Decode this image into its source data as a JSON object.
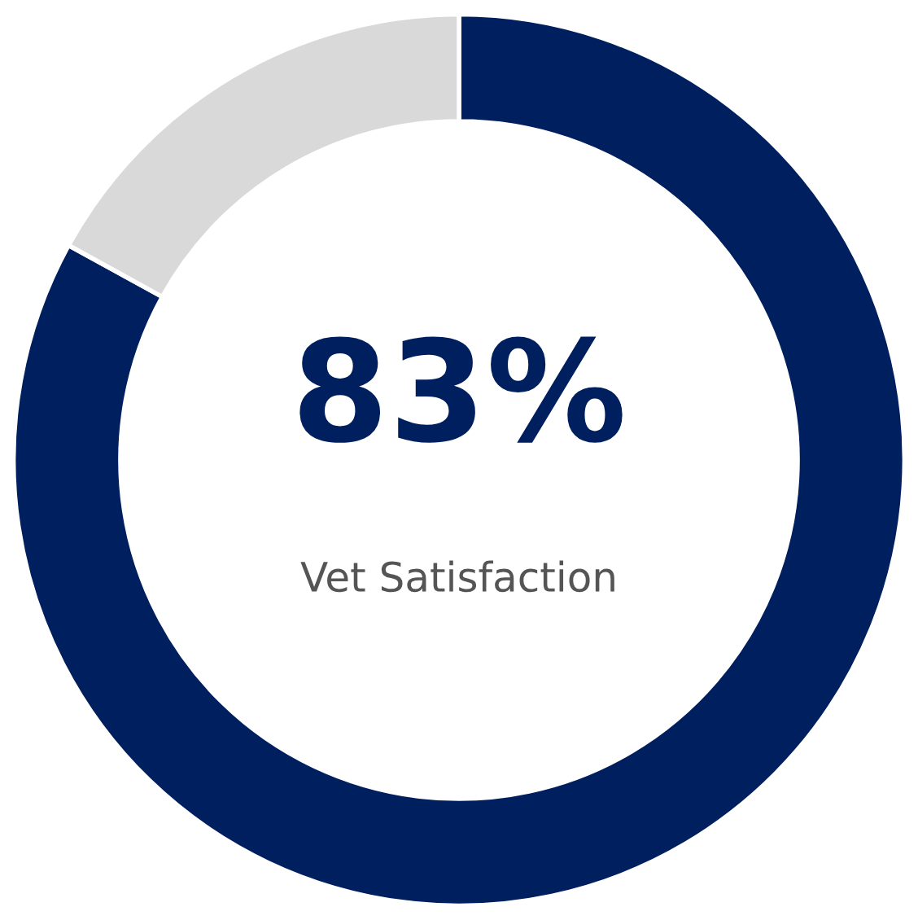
{
  "chart_data": {
    "type": "donut",
    "title": "Vet Satisfaction",
    "categories": [
      null,
      null
    ],
    "values": [
      83,
      17
    ],
    "colors": [
      "#001f5f",
      "#d9d9d9"
    ],
    "value_labels": [
      "83%",
      null
    ]
  }
}
